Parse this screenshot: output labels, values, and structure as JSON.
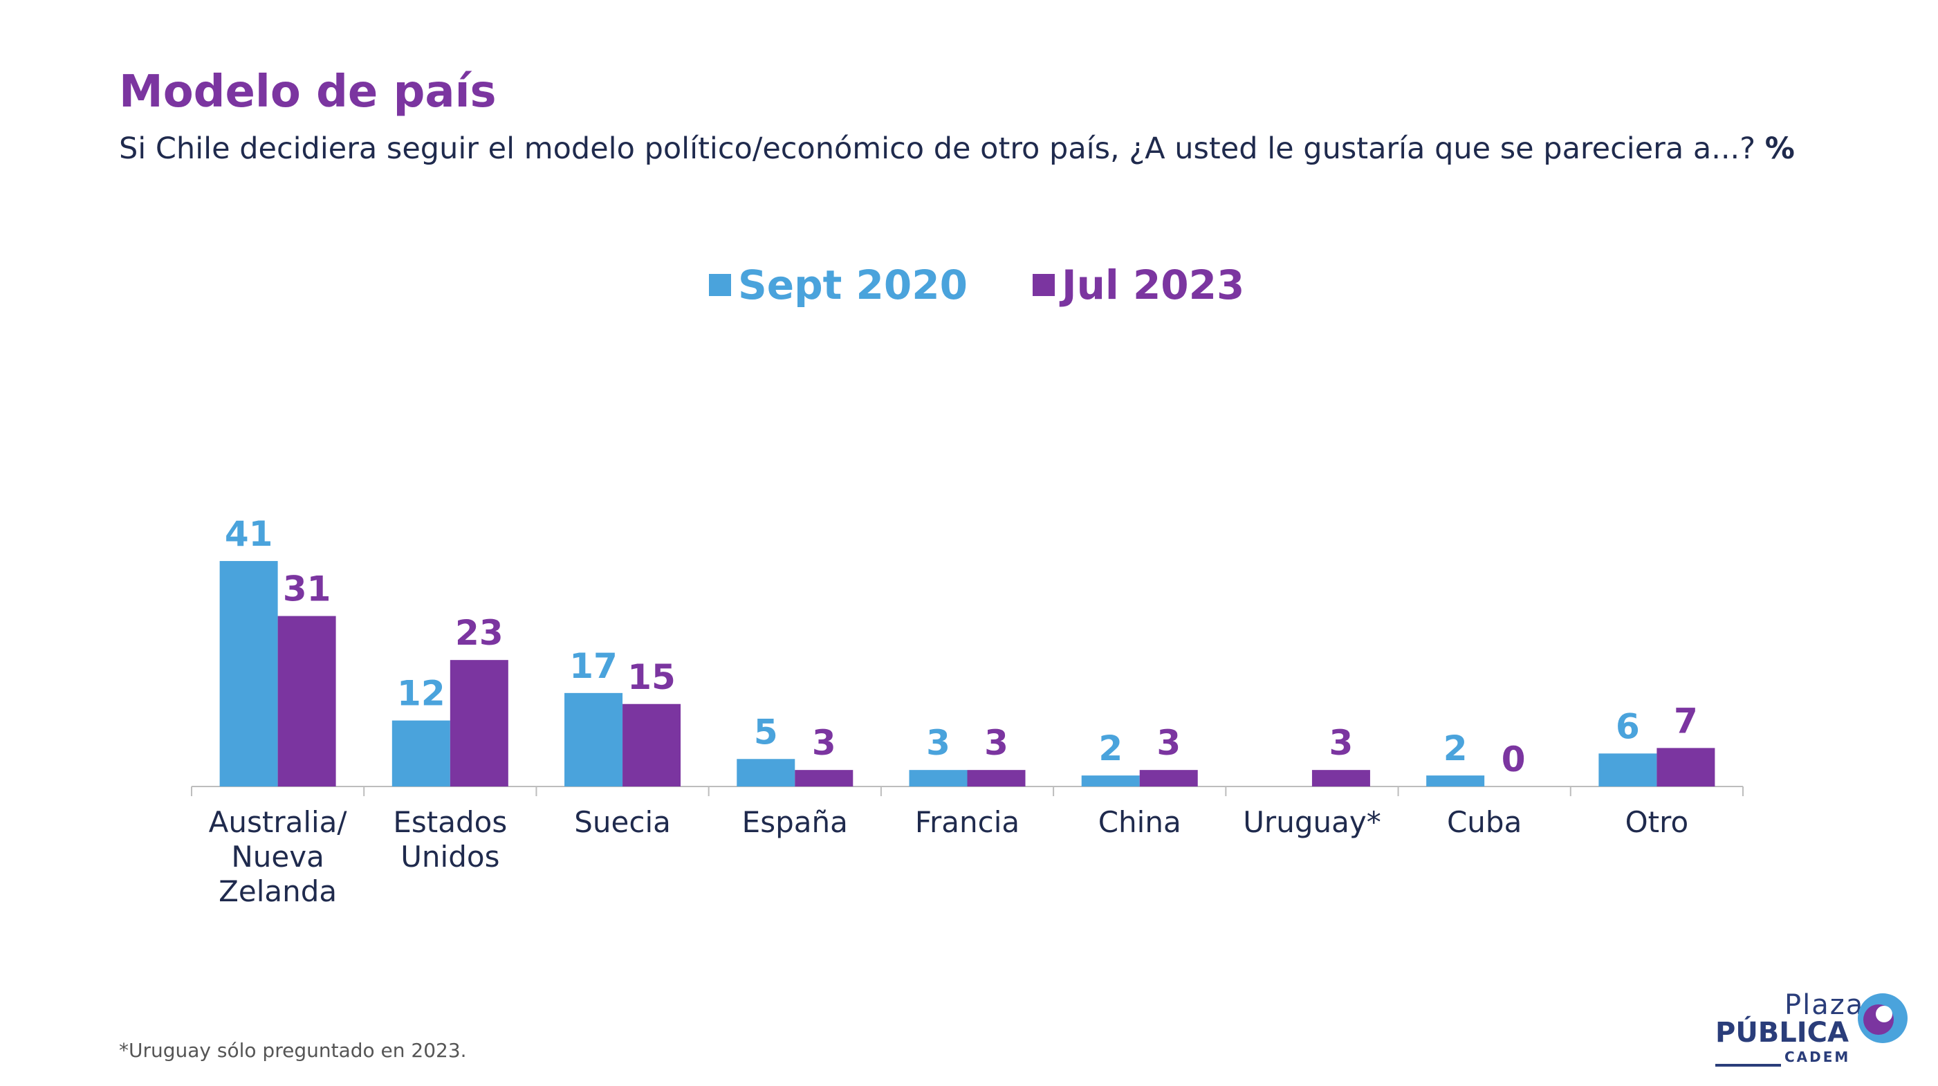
{
  "header": {
    "title": "Modelo de país",
    "subtitle": "Si Chile decidiera seguir el modelo político/económico de otro país, ¿A usted le gustaría que se pareciera a...?",
    "subtitle_unit": "%"
  },
  "footnote": "*Uruguay sólo preguntado en 2023.",
  "logo": {
    "line1": "Plaza",
    "line2": "PÚBLICA",
    "line3": "CADEM"
  },
  "colors": {
    "sept2020": "#4aa3dc",
    "jul2023": "#7b35a0",
    "title": "#7b35a0",
    "text": "#1f2a4d"
  },
  "chart_data": {
    "type": "bar",
    "categories": [
      "Australia/ Nueva Zelanda",
      "Estados Unidos",
      "Suecia",
      "España",
      "Francia",
      "China",
      "Uruguay*",
      "Cuba",
      "Otro"
    ],
    "series": [
      {
        "name": "Sept 2020",
        "values": [
          41,
          12,
          17,
          5,
          3,
          2,
          null,
          2,
          6
        ]
      },
      {
        "name": "Jul 2023",
        "values": [
          31,
          23,
          15,
          3,
          3,
          3,
          3,
          0,
          7
        ]
      }
    ],
    "legend": "top",
    "grid": false,
    "ylim": [
      0,
      45
    ]
  }
}
